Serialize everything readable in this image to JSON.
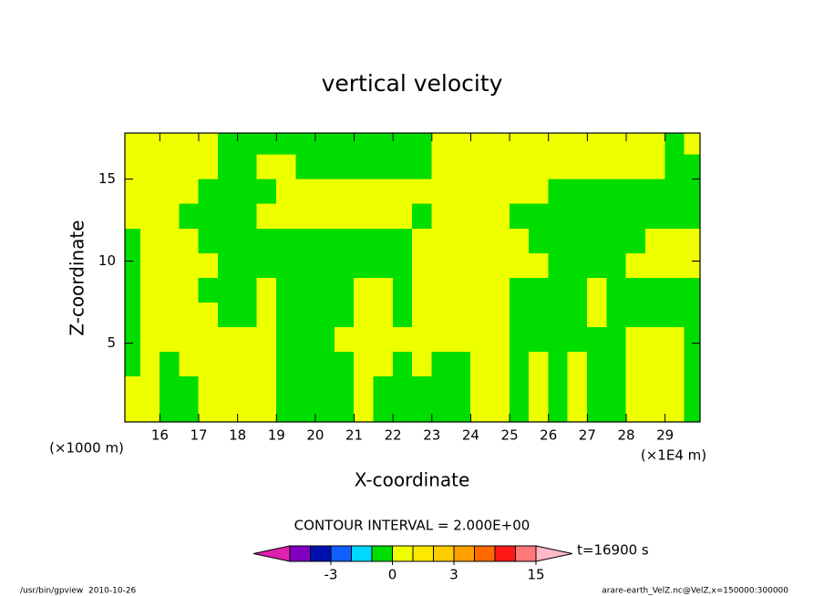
{
  "chart_data": {
    "type": "contour",
    "title": "vertical velocity",
    "xlabel": "X-coordinate",
    "ylabel": "Z-coordinate",
    "x_units": "(×1E4 m)",
    "y_units": "(×1000 m)",
    "contour_note": "CONTOUR INTERVAL = 2.000E+00",
    "time_label": "t=16900 s",
    "footer_left": "/usr/bin/gpview  2010-10-26",
    "footer_right": "arare-earth_VelZ.nc@VelZ,x=150000:300000",
    "xlim": [
      15.1,
      29.9
    ],
    "ylim": [
      0.2,
      17.8
    ],
    "xticks": [
      16,
      17,
      18,
      19,
      20,
      21,
      22,
      23,
      24,
      25,
      26,
      27,
      28,
      29
    ],
    "yticks": [
      5,
      10,
      15
    ],
    "x": [
      15.25,
      15.75,
      16.25,
      16.75,
      17.25,
      17.75,
      18.25,
      18.75,
      19.25,
      19.75,
      20.25,
      20.75,
      21.25,
      21.75,
      22.25,
      22.75,
      23.25,
      23.75,
      24.25,
      24.75,
      25.25,
      25.75,
      26.25,
      26.75,
      27.25,
      27.75,
      28.25,
      28.75,
      29.25,
      29.75
    ],
    "y": [
      0.75,
      2.25,
      3.75,
      5.25,
      6.75,
      8.25,
      9.75,
      11.25,
      12.75,
      14.25,
      15.75,
      17.25
    ],
    "z": [
      [
        0.5,
        0.5,
        -0.5,
        -0.5,
        0.5,
        0.5,
        0.5,
        0.5,
        -0.5,
        -0.5,
        -0.5,
        -0.5,
        0.5,
        -0.5,
        -0.5,
        -0.5,
        -0.5,
        -0.5,
        0.5,
        0.5,
        -0.5,
        0.5,
        -0.5,
        0.5,
        -0.5,
        -0.5,
        0.5,
        0.5,
        0.5,
        -0.5
      ],
      [
        0.5,
        0.5,
        -0.5,
        -0.5,
        0.5,
        0.5,
        0.5,
        0.5,
        -0.5,
        -0.5,
        -0.5,
        -0.5,
        0.5,
        -0.5,
        -0.5,
        -0.5,
        -0.5,
        -0.5,
        0.5,
        0.5,
        -0.5,
        0.5,
        -0.5,
        0.5,
        -0.5,
        -0.5,
        0.5,
        0.5,
        0.5,
        -0.5
      ],
      [
        -0.5,
        0.5,
        -0.5,
        0.5,
        0.5,
        0.5,
        0.5,
        0.5,
        -0.5,
        -0.5,
        -0.5,
        -0.5,
        0.5,
        0.5,
        -0.5,
        0.5,
        -0.5,
        -0.5,
        0.5,
        0.5,
        -0.5,
        0.5,
        -0.5,
        0.5,
        -0.5,
        -0.5,
        0.5,
        0.5,
        0.5,
        -0.5
      ],
      [
        -0.5,
        0.5,
        0.5,
        0.5,
        0.5,
        0.5,
        0.5,
        0.5,
        -0.5,
        -0.5,
        -0.5,
        0.5,
        0.5,
        0.5,
        0.5,
        0.5,
        0.5,
        0.5,
        0.5,
        0.5,
        -0.5,
        -0.5,
        -0.5,
        -0.5,
        -0.5,
        -0.5,
        0.5,
        0.5,
        0.5,
        -0.5
      ],
      [
        -0.5,
        0.5,
        0.5,
        0.5,
        0.5,
        -0.5,
        -0.5,
        0.5,
        -0.5,
        -0.5,
        -0.5,
        -0.5,
        0.5,
        0.5,
        -0.5,
        0.5,
        0.5,
        0.5,
        0.5,
        0.5,
        -0.5,
        -0.5,
        -0.5,
        -0.5,
        0.5,
        -0.5,
        -0.5,
        -0.5,
        -0.5,
        -0.5
      ],
      [
        -0.5,
        0.5,
        0.5,
        0.5,
        -0.5,
        -0.5,
        -0.5,
        0.5,
        -0.5,
        -0.5,
        -0.5,
        -0.5,
        0.5,
        0.5,
        -0.5,
        0.5,
        0.5,
        0.5,
        0.5,
        0.5,
        -0.5,
        -0.5,
        -0.5,
        -0.5,
        0.5,
        -0.5,
        -0.5,
        -0.5,
        -0.5,
        -0.5
      ],
      [
        -0.5,
        0.5,
        0.5,
        0.5,
        0.5,
        -0.5,
        -0.5,
        -0.5,
        -0.5,
        -0.5,
        -0.5,
        -0.5,
        -0.5,
        -0.5,
        -0.5,
        0.5,
        0.5,
        0.5,
        0.5,
        0.5,
        0.5,
        0.5,
        -0.5,
        -0.5,
        -0.5,
        -0.5,
        0.5,
        0.5,
        0.5,
        0.5
      ],
      [
        -0.5,
        0.5,
        0.5,
        0.5,
        -0.5,
        -0.5,
        -0.5,
        -0.5,
        -0.5,
        -0.5,
        -0.5,
        -0.5,
        -0.5,
        -0.5,
        -0.5,
        0.5,
        0.5,
        0.5,
        0.5,
        0.5,
        0.5,
        -0.5,
        -0.5,
        -0.5,
        -0.5,
        -0.5,
        -0.5,
        0.5,
        0.5,
        0.5
      ],
      [
        0.5,
        0.5,
        0.5,
        -0.5,
        -0.5,
        -0.5,
        -0.5,
        0.5,
        0.5,
        0.5,
        0.5,
        0.5,
        0.5,
        0.5,
        0.5,
        -0.5,
        0.5,
        0.5,
        0.5,
        0.5,
        -0.5,
        -0.5,
        -0.5,
        -0.5,
        -0.5,
        -0.5,
        -0.5,
        -0.5,
        -0.5,
        -0.5
      ],
      [
        0.5,
        0.5,
        0.5,
        0.5,
        -0.5,
        -0.5,
        -0.5,
        -0.5,
        0.5,
        0.5,
        0.5,
        0.5,
        0.5,
        0.5,
        0.5,
        0.5,
        0.5,
        0.5,
        0.5,
        0.5,
        0.5,
        0.5,
        -0.5,
        -0.5,
        -0.5,
        -0.5,
        -0.5,
        -0.5,
        -0.5,
        -0.5
      ],
      [
        0.5,
        0.5,
        0.5,
        0.5,
        0.5,
        -0.5,
        -0.5,
        0.5,
        0.5,
        -0.5,
        -0.5,
        -0.5,
        -0.5,
        -0.5,
        -0.5,
        -0.5,
        0.5,
        0.5,
        0.5,
        0.5,
        0.5,
        0.5,
        0.5,
        0.5,
        0.5,
        0.5,
        0.5,
        0.5,
        -0.5,
        -0.5
      ],
      [
        0.5,
        0.5,
        0.5,
        0.5,
        0.5,
        -0.5,
        -0.5,
        -0.5,
        -0.5,
        -0.5,
        -0.5,
        -0.5,
        -0.5,
        -0.5,
        -0.5,
        -0.5,
        0.5,
        0.5,
        0.5,
        0.5,
        0.5,
        0.5,
        0.5,
        0.5,
        0.5,
        0.5,
        0.5,
        0.5,
        -0.5,
        0.5
      ]
    ],
    "colorbar": {
      "levels": [
        -7,
        -5,
        -3,
        -2,
        -1,
        0,
        1,
        2,
        3,
        4,
        7,
        11,
        15
      ],
      "colors": [
        "#8000c0",
        "#0010b0",
        "#1060ff",
        "#00d8ff",
        "#00dd00",
        "#eeff00",
        "#ffe800",
        "#ffcc00",
        "#ffa000",
        "#ff6a00",
        "#ff1818",
        "#ff7878"
      ],
      "below_color": "#e020b0",
      "above_color": "#ffb8c8",
      "ticks": [
        -3,
        0,
        3,
        15
      ]
    }
  }
}
